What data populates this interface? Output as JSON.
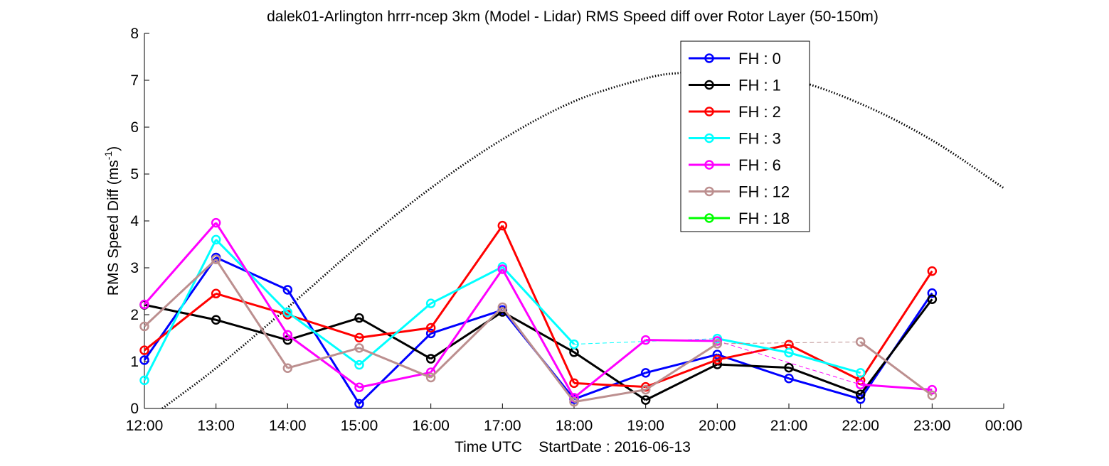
{
  "chart_data": {
    "type": "line",
    "title": "dalek01-Arlington hrrr-ncep 3km (Model - Lidar) RMS Speed diff over Rotor Layer (50-150m)",
    "xlabel": "Time UTC    StartDate : 2016-06-13",
    "ylabel": "RMS Speed Diff (ms",
    "ylabel_sup": "-1",
    "ylabel_end": ")",
    "xlim": [
      0,
      12
    ],
    "ylim": [
      0,
      8
    ],
    "x_ticks": [
      0,
      1,
      2,
      3,
      4,
      5,
      6,
      7,
      8,
      9,
      10,
      11,
      12
    ],
    "x_tick_labels": [
      "12:00",
      "13:00",
      "14:00",
      "15:00",
      "16:00",
      "17:00",
      "18:00",
      "19:00",
      "20:00",
      "21:00",
      "22:00",
      "23:00",
      "00:00"
    ],
    "y_ticks": [
      0,
      1,
      2,
      3,
      4,
      5,
      6,
      7,
      8
    ],
    "y_tick_labels": [
      "0",
      "1",
      "2",
      "3",
      "4",
      "5",
      "6",
      "7",
      "8"
    ],
    "grid": false,
    "legend_position": "top-right",
    "series": [
      {
        "name": "FH : 0",
        "color": "#0000ff",
        "x": [
          0,
          1,
          2,
          3,
          4,
          5,
          6,
          7,
          8,
          9,
          10,
          11
        ],
        "values": [
          1.03,
          3.22,
          2.53,
          0.1,
          1.6,
          2.1,
          0.2,
          0.76,
          1.15,
          0.64,
          0.2,
          2.46
        ]
      },
      {
        "name": "FH : 1",
        "color": "#000000",
        "x": [
          0,
          1,
          2,
          3,
          4,
          5,
          6,
          7,
          8,
          9,
          10,
          11
        ],
        "values": [
          2.21,
          1.89,
          1.46,
          1.93,
          1.06,
          2.06,
          1.2,
          0.18,
          0.94,
          0.87,
          0.3,
          2.33
        ]
      },
      {
        "name": "FH : 2",
        "color": "#ff0000",
        "x": [
          0,
          1,
          2,
          3,
          4,
          5,
          6,
          7,
          8,
          9,
          10,
          11
        ],
        "values": [
          1.24,
          2.45,
          2.0,
          1.51,
          1.72,
          3.9,
          0.54,
          0.46,
          1.04,
          1.36,
          0.6,
          2.93
        ]
      },
      {
        "name": "FH : 3",
        "color": "#00ffff",
        "x": [
          0,
          1,
          2,
          3,
          4,
          5,
          6,
          8,
          9,
          10
        ],
        "values": [
          0.6,
          3.6,
          2.05,
          0.93,
          2.24,
          3.02,
          1.37,
          1.49,
          1.19,
          0.76
        ]
      },
      {
        "name": "FH : 6",
        "color": "#ff00ff",
        "x": [
          0,
          1,
          2,
          3,
          4,
          5,
          6,
          7,
          8,
          10,
          11
        ],
        "values": [
          2.22,
          3.96,
          1.57,
          0.45,
          0.77,
          2.97,
          0.23,
          1.46,
          1.44,
          0.51,
          0.4
        ]
      },
      {
        "name": "FH : 12",
        "color": "#bc8f8f",
        "x": [
          0,
          1,
          2,
          3,
          4,
          5,
          6,
          7,
          8,
          10,
          11
        ],
        "values": [
          1.75,
          3.18,
          0.86,
          1.29,
          0.66,
          2.16,
          0.14,
          0.4,
          1.38,
          1.42,
          0.28
        ]
      },
      {
        "name": "FH : 18",
        "color": "#00ff00",
        "x": [],
        "values": []
      }
    ],
    "reference_curve": {
      "style": "dotted",
      "color": "#000000",
      "x": [
        0.25,
        1,
        2,
        3,
        4,
        5,
        6,
        7,
        7.5,
        8,
        9,
        10,
        11,
        12
      ],
      "values": [
        0.0,
        0.86,
        2.15,
        3.48,
        4.7,
        5.74,
        6.55,
        7.04,
        7.16,
        7.2,
        7.03,
        6.5,
        5.72,
        4.7
      ]
    }
  }
}
